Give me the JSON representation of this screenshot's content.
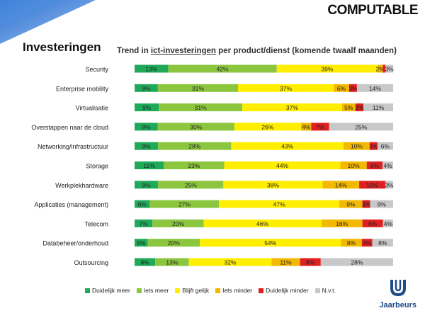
{
  "header": {
    "brand": "COMPUTABLE",
    "title": "Investeringen"
  },
  "footer": {
    "logo_text": "Jaarbeurs"
  },
  "colors": {
    "Duidelijk meer": "#1faa5a",
    "Iets meer": "#8cc63f",
    "Blijft gelijk": "#ffee00",
    "Iets minder": "#f3b800",
    "Duidelijk minder": "#e02020",
    "N.v.t.": "#c8c8c8"
  },
  "chart_data": {
    "type": "bar",
    "stacked": true,
    "orientation": "horizontal",
    "title": "Trend in ict-investeringen per product/dienst (komende twaalf maanden)",
    "title_parts": [
      "Trend in ",
      "ict-investeringen",
      " per product/dienst (komende twaalf maanden)"
    ],
    "legend_position": "bottom",
    "categories": [
      "Security",
      "Enterprise mobility",
      "Virtualisatie",
      "Overstappen naar de cloud",
      "Networking/infrastructuur",
      "Storage",
      "Werkplekhardware",
      "Applicaties (management)",
      "Telecom",
      "Databeheer/onderhoud",
      "Outsourcing"
    ],
    "series": [
      {
        "name": "Duidelijk meer",
        "values": [
          13,
          9,
          9,
          9,
          9,
          11,
          9,
          6,
          7,
          5,
          8
        ]
      },
      {
        "name": "Iets meer",
        "values": [
          42,
          31,
          31,
          30,
          28,
          23,
          25,
          27,
          20,
          20,
          13
        ]
      },
      {
        "name": "Blijft gelijk",
        "values": [
          39,
          37,
          37,
          26,
          43,
          44,
          38,
          47,
          46,
          54,
          32
        ]
      },
      {
        "name": "Iets minder",
        "values": [
          2,
          6,
          5,
          4,
          10,
          10,
          14,
          9,
          16,
          8,
          11
        ]
      },
      {
        "name": "Duidelijk minder",
        "values": [
          1,
          3,
          3,
          7,
          3,
          6,
          10,
          3,
          8,
          4,
          8
        ]
      },
      {
        "name": "N.v.t.",
        "values": [
          3,
          14,
          11,
          25,
          6,
          4,
          3,
          9,
          4,
          8,
          28
        ]
      }
    ],
    "labels": [
      [
        "13%",
        "42%",
        "39%",
        "2%",
        "",
        "3%"
      ],
      [
        "9%",
        "31%",
        "37%",
        "6%",
        "3%",
        "14%"
      ],
      [
        "9%",
        "31%",
        "37%",
        "5%",
        "3%",
        "11%"
      ],
      [
        "9%",
        "30%",
        "26%",
        "4%",
        "7%",
        "25%"
      ],
      [
        "9%",
        "28%",
        "43%",
        "10%",
        "3%",
        "6%"
      ],
      [
        "11%",
        "23%",
        "44%",
        "10%",
        "6%",
        "4%"
      ],
      [
        "9%",
        "25%",
        "38%",
        "14%",
        "10%",
        "3%"
      ],
      [
        "6%",
        "27%",
        "47%",
        "9%",
        "3%",
        "9%"
      ],
      [
        "7%",
        "20%",
        "46%",
        "16%",
        "8%",
        "4%"
      ],
      [
        "5%",
        "20%",
        "54%",
        "8%",
        "4%",
        "8%"
      ],
      [
        "8%",
        "13%",
        "32%",
        "11%",
        "8%",
        "28%"
      ]
    ],
    "xlim": [
      0,
      100
    ]
  }
}
